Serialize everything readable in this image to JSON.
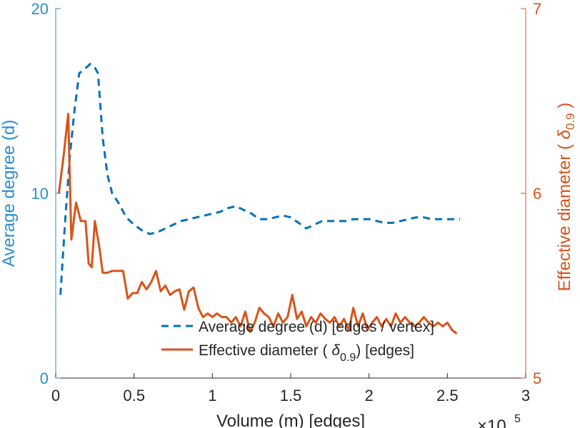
{
  "chart_data": {
    "type": "line",
    "title": "",
    "xlabel": "Volume (m) [edges]",
    "x_multiplier_label": "×10",
    "x_multiplier_exponent": "5",
    "ylabel_left": "Average degree (d)",
    "ylabel_right_prefix": "Effective diameter (",
    "ylabel_right_symbol": "δ",
    "ylabel_right_subscript": "0.9",
    "ylabel_right_suffix": ")",
    "xlim": [
      0,
      3
    ],
    "ylim_left": [
      0,
      20
    ],
    "ylim_right": [
      5,
      7
    ],
    "x_ticks": [
      "0",
      "0.5",
      "1",
      "1.5",
      "2",
      "2.5",
      "3"
    ],
    "y_ticks_left": [
      "0",
      "10",
      "20"
    ],
    "y_ticks_right": [
      "5",
      "6",
      "7"
    ],
    "grid": false,
    "legend_position": "bottom-right",
    "colors": {
      "left_axis": "#2a8fd0",
      "right_axis": "#d95319",
      "series1": "#0072bd",
      "series2": "#d95319"
    },
    "series": [
      {
        "name": "Average degree (d) [edges / vertex]",
        "axis": "left",
        "style": "dashed",
        "points": [
          [
            0.03,
            4.5
          ],
          [
            0.06,
            8.5
          ],
          [
            0.09,
            12.0
          ],
          [
            0.12,
            14.5
          ],
          [
            0.15,
            16.5
          ],
          [
            0.18,
            16.7
          ],
          [
            0.22,
            17.0
          ],
          [
            0.25,
            16.8
          ],
          [
            0.27,
            16.5
          ],
          [
            0.3,
            13.0
          ],
          [
            0.33,
            11.0
          ],
          [
            0.36,
            10.0
          ],
          [
            0.4,
            9.5
          ],
          [
            0.45,
            8.7
          ],
          [
            0.5,
            8.3
          ],
          [
            0.55,
            8.0
          ],
          [
            0.6,
            7.8
          ],
          [
            0.65,
            7.9
          ],
          [
            0.7,
            8.1
          ],
          [
            0.75,
            8.3
          ],
          [
            0.8,
            8.5
          ],
          [
            0.9,
            8.7
          ],
          [
            1.0,
            8.9
          ],
          [
            1.05,
            9.0
          ],
          [
            1.1,
            9.2
          ],
          [
            1.15,
            9.3
          ],
          [
            1.2,
            9.1
          ],
          [
            1.25,
            8.9
          ],
          [
            1.3,
            8.6
          ],
          [
            1.35,
            8.6
          ],
          [
            1.4,
            8.7
          ],
          [
            1.45,
            8.8
          ],
          [
            1.5,
            8.7
          ],
          [
            1.55,
            8.4
          ],
          [
            1.6,
            8.1
          ],
          [
            1.65,
            8.3
          ],
          [
            1.7,
            8.5
          ],
          [
            1.75,
            8.5
          ],
          [
            1.8,
            8.5
          ],
          [
            1.85,
            8.5
          ],
          [
            1.9,
            8.6
          ],
          [
            2.0,
            8.6
          ],
          [
            2.05,
            8.5
          ],
          [
            2.1,
            8.4
          ],
          [
            2.15,
            8.4
          ],
          [
            2.2,
            8.5
          ],
          [
            2.25,
            8.6
          ],
          [
            2.3,
            8.7
          ],
          [
            2.35,
            8.7
          ],
          [
            2.4,
            8.6
          ],
          [
            2.45,
            8.6
          ],
          [
            2.5,
            8.6
          ],
          [
            2.55,
            8.6
          ],
          [
            2.58,
            8.6
          ]
        ]
      },
      {
        "name": "Effective diameter (δ0.9) [edges]",
        "name_prefix": "Effective diameter (",
        "name_symbol": "δ",
        "name_subscript": "0.9",
        "name_suffix": ") [edges]",
        "axis": "right",
        "style": "solid",
        "points": [
          [
            0.02,
            6.0
          ],
          [
            0.05,
            6.2
          ],
          [
            0.08,
            6.43
          ],
          [
            0.1,
            5.75
          ],
          [
            0.13,
            5.95
          ],
          [
            0.16,
            5.85
          ],
          [
            0.19,
            5.85
          ],
          [
            0.21,
            5.62
          ],
          [
            0.23,
            5.6
          ],
          [
            0.25,
            5.85
          ],
          [
            0.28,
            5.7
          ],
          [
            0.3,
            5.57
          ],
          [
            0.33,
            5.57
          ],
          [
            0.36,
            5.58
          ],
          [
            0.4,
            5.58
          ],
          [
            0.43,
            5.58
          ],
          [
            0.46,
            5.43
          ],
          [
            0.49,
            5.46
          ],
          [
            0.52,
            5.46
          ],
          [
            0.55,
            5.52
          ],
          [
            0.58,
            5.48
          ],
          [
            0.61,
            5.52
          ],
          [
            0.64,
            5.58
          ],
          [
            0.67,
            5.47
          ],
          [
            0.7,
            5.5
          ],
          [
            0.73,
            5.45
          ],
          [
            0.76,
            5.47
          ],
          [
            0.79,
            5.48
          ],
          [
            0.82,
            5.37
          ],
          [
            0.85,
            5.47
          ],
          [
            0.88,
            5.49
          ],
          [
            0.91,
            5.38
          ],
          [
            0.94,
            5.33
          ],
          [
            0.97,
            5.35
          ],
          [
            1.0,
            5.33
          ],
          [
            1.03,
            5.35
          ],
          [
            1.06,
            5.33
          ],
          [
            1.09,
            5.33
          ],
          [
            1.12,
            5.3
          ],
          [
            1.15,
            5.33
          ],
          [
            1.18,
            5.28
          ],
          [
            1.21,
            5.36
          ],
          [
            1.24,
            5.25
          ],
          [
            1.27,
            5.3
          ],
          [
            1.3,
            5.38
          ],
          [
            1.33,
            5.35
          ],
          [
            1.36,
            5.33
          ],
          [
            1.39,
            5.28
          ],
          [
            1.42,
            5.35
          ],
          [
            1.45,
            5.3
          ],
          [
            1.48,
            5.33
          ],
          [
            1.51,
            5.45
          ],
          [
            1.54,
            5.32
          ],
          [
            1.57,
            5.36
          ],
          [
            1.6,
            5.28
          ],
          [
            1.63,
            5.33
          ],
          [
            1.66,
            5.3
          ],
          [
            1.69,
            5.35
          ],
          [
            1.72,
            5.32
          ],
          [
            1.75,
            5.3
          ],
          [
            1.78,
            5.33
          ],
          [
            1.81,
            5.28
          ],
          [
            1.84,
            5.32
          ],
          [
            1.87,
            5.26
          ],
          [
            1.9,
            5.38
          ],
          [
            1.93,
            5.28
          ],
          [
            1.96,
            5.35
          ],
          [
            1.99,
            5.26
          ],
          [
            2.02,
            5.3
          ],
          [
            2.05,
            5.33
          ],
          [
            2.08,
            5.28
          ],
          [
            2.11,
            5.32
          ],
          [
            2.14,
            5.28
          ],
          [
            2.17,
            5.35
          ],
          [
            2.2,
            5.3
          ],
          [
            2.23,
            5.33
          ],
          [
            2.26,
            5.3
          ],
          [
            2.29,
            5.28
          ],
          [
            2.32,
            5.3
          ],
          [
            2.35,
            5.33
          ],
          [
            2.38,
            5.3
          ],
          [
            2.41,
            5.28
          ],
          [
            2.44,
            5.3
          ],
          [
            2.47,
            5.28
          ],
          [
            2.5,
            5.3
          ],
          [
            2.53,
            5.26
          ],
          [
            2.56,
            5.24
          ]
        ]
      }
    ]
  }
}
